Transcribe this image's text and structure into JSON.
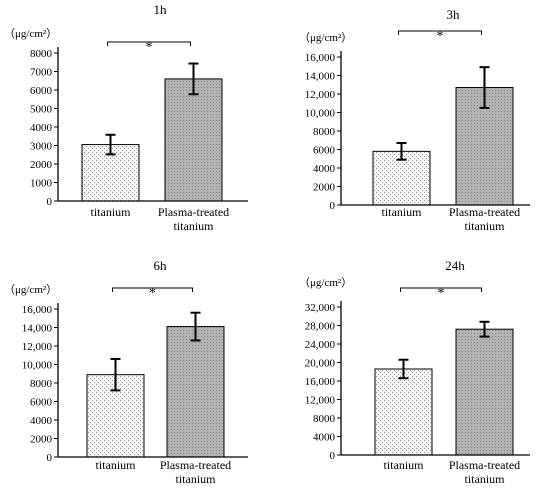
{
  "chart_data": [
    {
      "type": "bar",
      "title": "1h",
      "ylabel": "（μg/cm²）",
      "categories": [
        "titanium",
        "Plasma-treated titanium"
      ],
      "category_lines": [
        [
          "titanium"
        ],
        [
          "Plasma-treated",
          "titanium"
        ]
      ],
      "values": [
        3050,
        6600
      ],
      "errors": [
        530,
        830
      ],
      "ylim": [
        0,
        8000
      ],
      "yticks": [
        0,
        1000,
        2000,
        3000,
        4000,
        5000,
        6000,
        7000,
        8000
      ],
      "ytick_labels": [
        "0",
        "1000",
        "2000",
        "3000",
        "4000",
        "5000",
        "6000",
        "7000",
        "8000"
      ],
      "significance": "*",
      "fills": [
        "dotted-light",
        "hatched-gray"
      ]
    },
    {
      "type": "bar",
      "title": "3h",
      "ylabel": "（μg/cm²）",
      "categories": [
        "titanium",
        "Plasma-treated titanium"
      ],
      "category_lines": [
        [
          "titanium"
        ],
        [
          "Plasma-treated",
          "titanium"
        ]
      ],
      "values": [
        5800,
        12700
      ],
      "errors": [
        900,
        2200
      ],
      "ylim": [
        0,
        16000
      ],
      "yticks": [
        0,
        2000,
        4000,
        6000,
        8000,
        10000,
        12000,
        14000,
        16000
      ],
      "ytick_labels": [
        "0",
        "2000",
        "4000",
        "6000",
        "8000",
        "10,000",
        "12,000",
        "14,000",
        "16,000"
      ],
      "significance": "*",
      "fills": [
        "dotted-light",
        "hatched-gray"
      ]
    },
    {
      "type": "bar",
      "title": "6h",
      "ylabel": "（μg/cm²）",
      "categories": [
        "titanium",
        "Plasma-treated titanium"
      ],
      "category_lines": [
        [
          "titanium"
        ],
        [
          "Plasma-treated",
          "titanium"
        ]
      ],
      "values": [
        8900,
        14100
      ],
      "errors": [
        1700,
        1500
      ],
      "ylim": [
        0,
        16000
      ],
      "yticks": [
        0,
        2000,
        4000,
        6000,
        8000,
        10000,
        12000,
        14000,
        16000
      ],
      "ytick_labels": [
        "0",
        "2000",
        "4000",
        "6000",
        "8000",
        "10,000",
        "12,000",
        "14,000",
        "16,000"
      ],
      "significance": "*",
      "fills": [
        "dotted-light",
        "hatched-gray"
      ]
    },
    {
      "type": "bar",
      "title": "24h",
      "ylabel": "（μg/cm²）",
      "categories": [
        "titanium",
        "Plasma-treated titanium"
      ],
      "category_lines": [
        [
          "titanium"
        ],
        [
          "Plasma-treated",
          "titanium"
        ]
      ],
      "values": [
        18600,
        27200
      ],
      "errors": [
        2000,
        1600
      ],
      "ylim": [
        0,
        32000
      ],
      "yticks": [
        0,
        4000,
        8000,
        12000,
        16000,
        20000,
        24000,
        28000,
        32000
      ],
      "ytick_labels": [
        "0",
        "4000",
        "8000",
        "12,000",
        "16,000",
        "20,000",
        "24,000",
        "28,000",
        "32,000"
      ],
      "significance": "*",
      "fills": [
        "dotted-light",
        "hatched-gray"
      ]
    }
  ]
}
